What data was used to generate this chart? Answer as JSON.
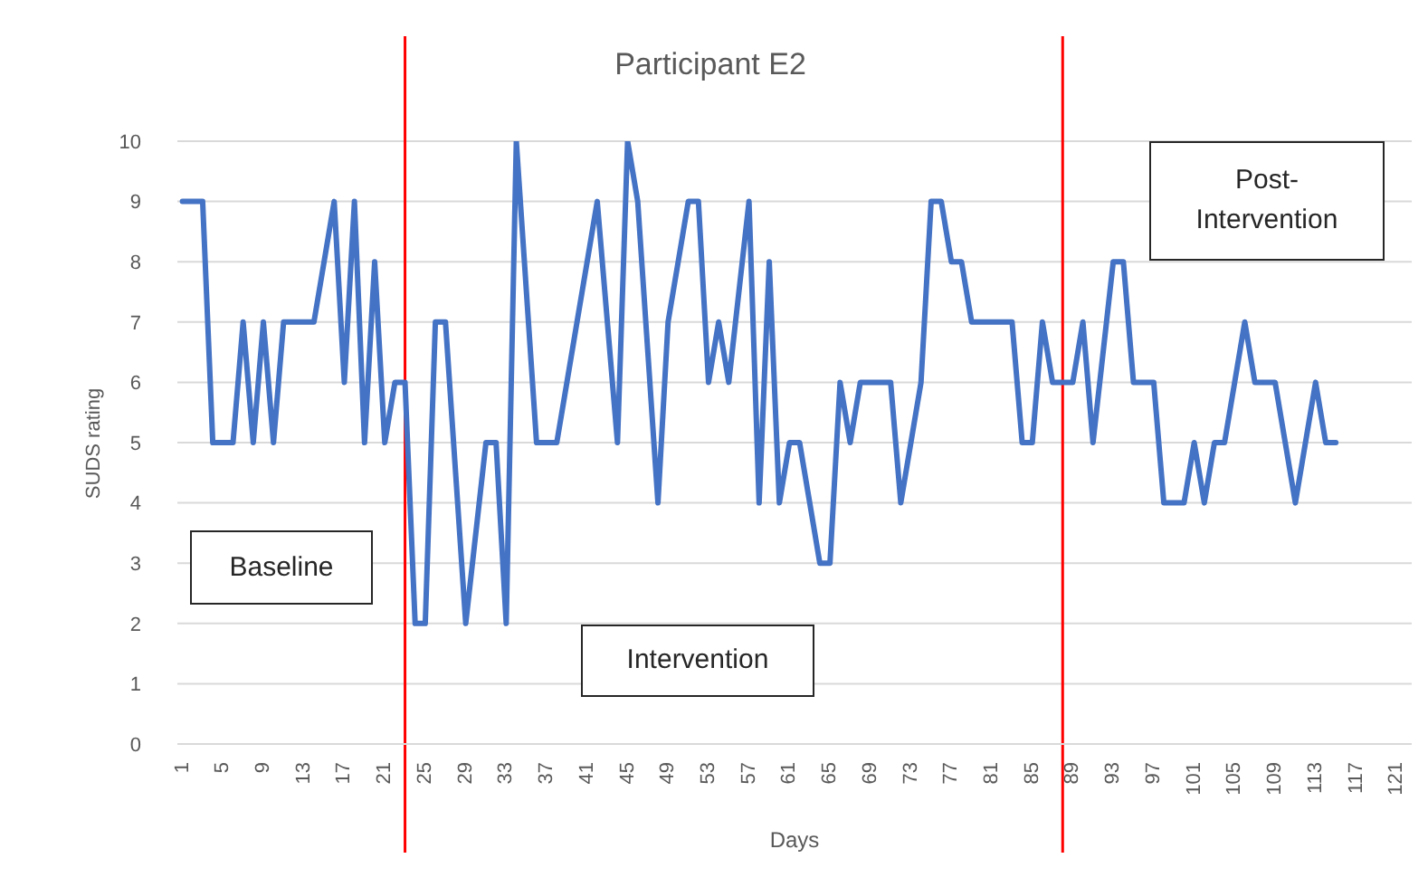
{
  "chart_data": {
    "type": "line",
    "title": "Participant E2",
    "xlabel": "Days",
    "ylabel": "SUDS rating",
    "x": [
      1,
      2,
      3,
      4,
      5,
      6,
      7,
      8,
      9,
      10,
      11,
      12,
      13,
      14,
      15,
      16,
      17,
      18,
      19,
      20,
      21,
      22,
      23,
      24,
      25,
      26,
      27,
      28,
      29,
      30,
      31,
      32,
      33,
      34,
      35,
      36,
      37,
      38,
      39,
      40,
      41,
      42,
      43,
      44,
      45,
      46,
      47,
      48,
      49,
      50,
      51,
      52,
      53,
      54,
      55,
      56,
      57,
      58,
      59,
      60,
      61,
      62,
      63,
      64,
      65,
      66,
      67,
      68,
      69,
      70,
      71,
      72,
      73,
      74,
      75,
      76,
      77,
      78,
      79,
      80,
      81,
      82,
      83,
      84,
      85,
      86,
      87,
      88,
      89,
      90,
      91,
      92,
      93,
      94,
      95,
      96,
      97,
      98,
      99,
      100,
      101,
      102,
      103,
      104,
      105,
      106,
      107,
      108,
      109,
      110,
      111,
      112,
      113,
      114,
      115
    ],
    "values": [
      9,
      9,
      9,
      5,
      5,
      5,
      7,
      5,
      7,
      5,
      7,
      7,
      7,
      7,
      8,
      9,
      6,
      9,
      5,
      8,
      5,
      6,
      6,
      2,
      2,
      7,
      7,
      4.5,
      2,
      3.5,
      5,
      5,
      2,
      10,
      7.5,
      5,
      5,
      5,
      6,
      7,
      8,
      9,
      7,
      5,
      10,
      9,
      6.5,
      4,
      7,
      8,
      9,
      9,
      6,
      7,
      6,
      7.5,
      9,
      4,
      8,
      4,
      5,
      5,
      4,
      3,
      3,
      6,
      5,
      6,
      6,
      6,
      6,
      4,
      5,
      6,
      9,
      9,
      8,
      8,
      7,
      7,
      7,
      7,
      7,
      5,
      5,
      7,
      6,
      6,
      6,
      7,
      5,
      6.5,
      8,
      8,
      6,
      6,
      6,
      4,
      4,
      4,
      5,
      4,
      5,
      5,
      6,
      7,
      6,
      6,
      6,
      5,
      4,
      5,
      6,
      5,
      5
    ],
    "color": "#4472c4",
    "xlim": [
      0.5,
      122.5
    ],
    "xticks": [
      1,
      5,
      9,
      13,
      17,
      21,
      25,
      29,
      33,
      37,
      41,
      45,
      49,
      53,
      57,
      61,
      65,
      69,
      73,
      77,
      81,
      85,
      89,
      93,
      97,
      101,
      105,
      109,
      113,
      117,
      121
    ],
    "ylim": [
      0,
      10
    ],
    "yticks": [
      0,
      1,
      2,
      3,
      4,
      5,
      6,
      7,
      8,
      9,
      10
    ],
    "grid": "y",
    "line_style": "solid",
    "ref_lines": [
      {
        "axis": "x",
        "value": 23,
        "color": "#ff0000"
      },
      {
        "axis": "x",
        "value": 88,
        "color": "#ff0000"
      }
    ],
    "annotations": [
      "Baseline",
      "Intervention",
      "Post-Intervention"
    ]
  }
}
